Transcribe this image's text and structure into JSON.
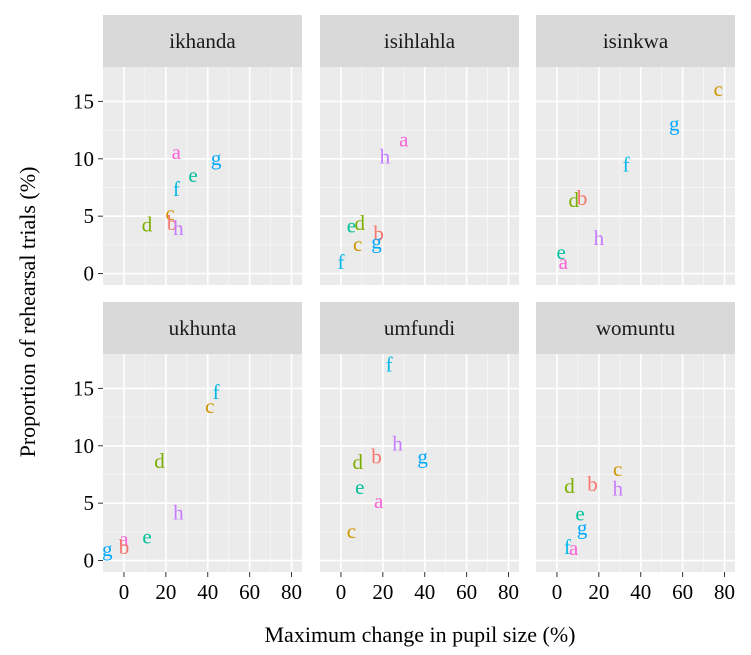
{
  "chart_data": {
    "type": "scatter",
    "xlabel": "Maximum change in pupil size (%)",
    "ylabel": "Proportion of rehearsal trials (%)",
    "xlim": [
      -10,
      85
    ],
    "ylim": [
      -1,
      18
    ],
    "xticks": [
      0,
      20,
      40,
      60,
      80
    ],
    "yticks": [
      0,
      5,
      10,
      15
    ],
    "grid": true,
    "label_colors": {
      "a": "#F8766D",
      "b": "#F8766D",
      "c": "#C49A00",
      "d": "#53B400",
      "e": "#00C094",
      "f": "#00B6EB",
      "g": "#00A6FF",
      "h": "#A58AFF"
    },
    "panels": [
      {
        "title": "ikhanda",
        "points": [
          {
            "label": "a",
            "x": 25,
            "y": 10.5,
            "color": "#FB61D7"
          },
          {
            "label": "g",
            "x": 44,
            "y": 10,
            "color": "#00A9FF"
          },
          {
            "label": "e",
            "x": 33,
            "y": 8.5,
            "color": "#00C19A"
          },
          {
            "label": "f",
            "x": 25,
            "y": 7.3,
            "color": "#00B8E7"
          },
          {
            "label": "c",
            "x": 22,
            "y": 5.2,
            "color": "#CD9600"
          },
          {
            "label": "d",
            "x": 11,
            "y": 4.2,
            "color": "#7CAE00"
          },
          {
            "label": "b",
            "x": 23,
            "y": 4.3,
            "color": "#F8766D"
          },
          {
            "label": "h",
            "x": 26,
            "y": 3.9,
            "color": "#C77CFF"
          }
        ]
      },
      {
        "title": "isihlahla",
        "points": [
          {
            "label": "a",
            "x": 30,
            "y": 11.6,
            "color": "#FB61D7"
          },
          {
            "label": "h",
            "x": 21,
            "y": 10.1,
            "color": "#C77CFF"
          },
          {
            "label": "e",
            "x": 5,
            "y": 4.1,
            "color": "#00C19A"
          },
          {
            "label": "d",
            "x": 9,
            "y": 4.3,
            "color": "#7CAE00"
          },
          {
            "label": "b",
            "x": 18,
            "y": 3.4,
            "color": "#F8766D"
          },
          {
            "label": "g",
            "x": 17,
            "y": 2.7,
            "color": "#00A9FF"
          },
          {
            "label": "c",
            "x": 8,
            "y": 2.5,
            "color": "#CD9600"
          },
          {
            "label": "f",
            "x": 0,
            "y": 0.9,
            "color": "#00B8E7"
          }
        ]
      },
      {
        "title": "isinkwa",
        "points": [
          {
            "label": "c",
            "x": 77,
            "y": 16,
            "color": "#CD9600"
          },
          {
            "label": "g",
            "x": 56,
            "y": 13,
            "color": "#00A9FF"
          },
          {
            "label": "f",
            "x": 33,
            "y": 9.4,
            "color": "#00B8E7"
          },
          {
            "label": "b",
            "x": 12,
            "y": 6.5,
            "color": "#F8766D"
          },
          {
            "label": "d",
            "x": 8,
            "y": 6.3,
            "color": "#7CAE00"
          },
          {
            "label": "h",
            "x": 20,
            "y": 3,
            "color": "#C77CFF"
          },
          {
            "label": "e",
            "x": 2,
            "y": 1.8,
            "color": "#00C19A"
          },
          {
            "label": "a",
            "x": 3,
            "y": 0.9,
            "color": "#FB61D7"
          }
        ]
      },
      {
        "title": "ukhunta",
        "points": [
          {
            "label": "f",
            "x": 44,
            "y": 14.6,
            "color": "#00B8E7"
          },
          {
            "label": "c",
            "x": 41,
            "y": 13.4,
            "color": "#CD9600"
          },
          {
            "label": "d",
            "x": 17,
            "y": 8.6,
            "color": "#7CAE00"
          },
          {
            "label": "h",
            "x": 26,
            "y": 4.1,
            "color": "#C77CFF"
          },
          {
            "label": "e",
            "x": 11,
            "y": 2,
            "color": "#00C19A"
          },
          {
            "label": "a",
            "x": 0,
            "y": 1.8,
            "color": "#FB61D7"
          },
          {
            "label": "b",
            "x": 0,
            "y": 1.1,
            "color": "#F8766D"
          },
          {
            "label": "g",
            "x": -8,
            "y": 0.9,
            "color": "#00A9FF"
          }
        ]
      },
      {
        "title": "umfundi",
        "points": [
          {
            "label": "f",
            "x": 23,
            "y": 17,
            "color": "#00B8E7"
          },
          {
            "label": "h",
            "x": 27,
            "y": 10.1,
            "color": "#C77CFF"
          },
          {
            "label": "g",
            "x": 39,
            "y": 9,
            "color": "#00A9FF"
          },
          {
            "label": "b",
            "x": 17,
            "y": 9,
            "color": "#F8766D"
          },
          {
            "label": "d",
            "x": 8,
            "y": 8.5,
            "color": "#7CAE00"
          },
          {
            "label": "e",
            "x": 9,
            "y": 6.3,
            "color": "#00C19A"
          },
          {
            "label": "a",
            "x": 18,
            "y": 5.1,
            "color": "#FB61D7"
          },
          {
            "label": "c",
            "x": 5,
            "y": 2.5,
            "color": "#CD9600"
          }
        ]
      },
      {
        "title": "womuntu",
        "points": [
          {
            "label": "c",
            "x": 29,
            "y": 7.9,
            "color": "#CD9600"
          },
          {
            "label": "b",
            "x": 17,
            "y": 6.6,
            "color": "#F8766D"
          },
          {
            "label": "d",
            "x": 6,
            "y": 6.4,
            "color": "#7CAE00"
          },
          {
            "label": "h",
            "x": 29,
            "y": 6.2,
            "color": "#C77CFF"
          },
          {
            "label": "e",
            "x": 11,
            "y": 4,
            "color": "#00C19A"
          },
          {
            "label": "g",
            "x": 12,
            "y": 2.8,
            "color": "#00A9FF"
          },
          {
            "label": "f",
            "x": 5,
            "y": 1.1,
            "color": "#00B8E7"
          },
          {
            "label": "a",
            "x": 8,
            "y": 1,
            "color": "#FB61D7"
          }
        ]
      }
    ]
  }
}
